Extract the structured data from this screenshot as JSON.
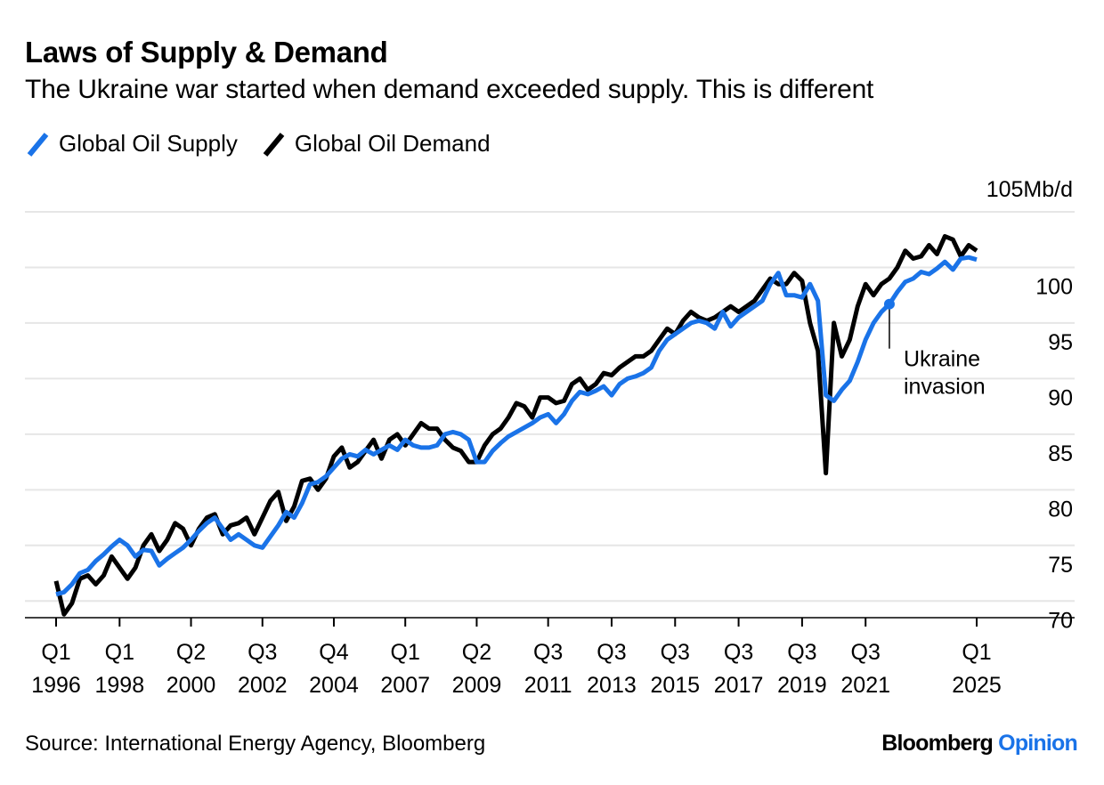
{
  "title": "Laws of Supply & Demand",
  "subtitle": "The Ukraine war started when demand exceeded supply. This is different",
  "source": "Source: International Energy Agency, Bloomberg",
  "brand": {
    "name": "Bloomberg",
    "suffix": "Opinion"
  },
  "colors": {
    "supply": "#1a73e8",
    "demand": "#000000",
    "grid": "#e6e6e6"
  },
  "chart_data": {
    "type": "line",
    "unit_label": "105Mb/d",
    "ylim": [
      68.5,
      105
    ],
    "y_ticks": [
      70,
      75,
      80,
      85,
      90,
      95,
      100
    ],
    "x_range": [
      1996.0,
      2025.5
    ],
    "grid": true,
    "legend_position": "top-left",
    "x_ticks": [
      {
        "x": 1996.0,
        "q": "Q1",
        "year": "1996"
      },
      {
        "x": 1998.0,
        "q": "Q1",
        "year": "1998"
      },
      {
        "x": 2000.25,
        "q": "Q2",
        "year": "2000"
      },
      {
        "x": 2002.5,
        "q": "Q3",
        "year": "2002"
      },
      {
        "x": 2004.75,
        "q": "Q4",
        "year": "2004"
      },
      {
        "x": 2007.0,
        "q": "Q1",
        "year": "2007"
      },
      {
        "x": 2009.25,
        "q": "Q2",
        "year": "2009"
      },
      {
        "x": 2011.5,
        "q": "Q3",
        "year": "2011"
      },
      {
        "x": 2013.5,
        "q": "Q3",
        "year": "2013"
      },
      {
        "x": 2015.5,
        "q": "Q3",
        "year": "2015"
      },
      {
        "x": 2017.5,
        "q": "Q3",
        "year": "2017"
      },
      {
        "x": 2019.5,
        "q": "Q3",
        "year": "2019"
      },
      {
        "x": 2021.5,
        "q": "Q3",
        "year": "2021"
      },
      {
        "x": 2025.0,
        "q": "Q1",
        "year": "2025"
      }
    ],
    "series": [
      {
        "name": "Global Oil Supply",
        "color": "#1a73e8",
        "points": [
          [
            1996.0,
            70.6
          ],
          [
            1996.25,
            70.8
          ],
          [
            1996.5,
            71.5
          ],
          [
            1996.75,
            72.5
          ],
          [
            1997.0,
            72.8
          ],
          [
            1997.25,
            73.6
          ],
          [
            1997.5,
            74.2
          ],
          [
            1997.75,
            74.9
          ],
          [
            1998.0,
            75.5
          ],
          [
            1998.25,
            75.0
          ],
          [
            1998.5,
            74.0
          ],
          [
            1998.75,
            74.6
          ],
          [
            1999.0,
            74.5
          ],
          [
            1999.25,
            73.2
          ],
          [
            1999.5,
            73.8
          ],
          [
            1999.75,
            74.3
          ],
          [
            2000.0,
            74.8
          ],
          [
            2000.25,
            75.5
          ],
          [
            2000.5,
            76.3
          ],
          [
            2000.75,
            77.0
          ],
          [
            2001.0,
            77.5
          ],
          [
            2001.25,
            76.5
          ],
          [
            2001.5,
            75.5
          ],
          [
            2001.75,
            76.0
          ],
          [
            2002.0,
            75.5
          ],
          [
            2002.25,
            75.0
          ],
          [
            2002.5,
            74.8
          ],
          [
            2002.75,
            75.8
          ],
          [
            2003.0,
            76.8
          ],
          [
            2003.25,
            78.0
          ],
          [
            2003.5,
            77.5
          ],
          [
            2003.75,
            78.8
          ],
          [
            2004.0,
            80.5
          ],
          [
            2004.25,
            80.7
          ],
          [
            2004.5,
            81.2
          ],
          [
            2004.75,
            82.0
          ],
          [
            2005.0,
            82.8
          ],
          [
            2005.25,
            83.2
          ],
          [
            2005.5,
            83.0
          ],
          [
            2005.75,
            83.6
          ],
          [
            2006.0,
            83.2
          ],
          [
            2006.25,
            83.6
          ],
          [
            2006.5,
            84.0
          ],
          [
            2006.75,
            83.6
          ],
          [
            2007.0,
            84.5
          ],
          [
            2007.25,
            84.0
          ],
          [
            2007.5,
            83.8
          ],
          [
            2007.75,
            83.8
          ],
          [
            2008.0,
            84.0
          ],
          [
            2008.25,
            85.0
          ],
          [
            2008.5,
            85.2
          ],
          [
            2008.75,
            85.0
          ],
          [
            2009.0,
            84.5
          ],
          [
            2009.25,
            82.5
          ],
          [
            2009.5,
            82.5
          ],
          [
            2009.75,
            83.5
          ],
          [
            2010.0,
            84.2
          ],
          [
            2010.25,
            84.8
          ],
          [
            2010.5,
            85.2
          ],
          [
            2010.75,
            85.6
          ],
          [
            2011.0,
            86.0
          ],
          [
            2011.25,
            86.5
          ],
          [
            2011.5,
            86.8
          ],
          [
            2011.75,
            86.0
          ],
          [
            2012.0,
            86.8
          ],
          [
            2012.25,
            88.0
          ],
          [
            2012.5,
            88.8
          ],
          [
            2012.75,
            88.6
          ],
          [
            2013.0,
            88.9
          ],
          [
            2013.25,
            89.3
          ],
          [
            2013.5,
            88.5
          ],
          [
            2013.75,
            89.5
          ],
          [
            2014.0,
            90.0
          ],
          [
            2014.25,
            90.2
          ],
          [
            2014.5,
            90.5
          ],
          [
            2014.75,
            91.0
          ],
          [
            2015.0,
            92.5
          ],
          [
            2015.25,
            93.5
          ],
          [
            2015.5,
            94.0
          ],
          [
            2015.75,
            94.5
          ],
          [
            2016.0,
            95.0
          ],
          [
            2016.25,
            95.2
          ],
          [
            2016.5,
            95.0
          ],
          [
            2016.75,
            94.5
          ],
          [
            2017.0,
            96.0
          ],
          [
            2017.25,
            94.7
          ],
          [
            2017.5,
            95.5
          ],
          [
            2017.75,
            96.0
          ],
          [
            2018.0,
            96.5
          ],
          [
            2018.25,
            97.0
          ],
          [
            2018.5,
            98.5
          ],
          [
            2018.75,
            99.5
          ],
          [
            2019.0,
            97.5
          ],
          [
            2019.25,
            97.5
          ],
          [
            2019.5,
            97.3
          ],
          [
            2019.75,
            98.5
          ],
          [
            2020.0,
            97.0
          ],
          [
            2020.25,
            88.5
          ],
          [
            2020.5,
            88.0
          ],
          [
            2020.75,
            89.0
          ],
          [
            2021.0,
            89.8
          ],
          [
            2021.25,
            91.5
          ],
          [
            2021.5,
            93.5
          ],
          [
            2021.75,
            95.0
          ],
          [
            2022.0,
            96.0
          ],
          [
            2022.25,
            96.7
          ],
          [
            2022.5,
            97.8
          ],
          [
            2022.75,
            98.7
          ],
          [
            2023.0,
            99.0
          ],
          [
            2023.25,
            99.6
          ],
          [
            2023.5,
            99.4
          ],
          [
            2023.75,
            99.9
          ],
          [
            2024.0,
            100.5
          ],
          [
            2024.25,
            99.8
          ],
          [
            2024.5,
            100.8
          ],
          [
            2024.75,
            100.9
          ],
          [
            2025.0,
            100.7
          ]
        ]
      },
      {
        "name": "Global Oil Demand",
        "color": "#000000",
        "points": [
          [
            1996.0,
            71.8
          ],
          [
            1996.25,
            68.8
          ],
          [
            1996.5,
            69.8
          ],
          [
            1996.75,
            72.0
          ],
          [
            1997.0,
            72.3
          ],
          [
            1997.25,
            71.5
          ],
          [
            1997.5,
            72.3
          ],
          [
            1997.75,
            74.0
          ],
          [
            1998.0,
            73.0
          ],
          [
            1998.25,
            72.0
          ],
          [
            1998.5,
            73.0
          ],
          [
            1998.75,
            75.0
          ],
          [
            1999.0,
            76.0
          ],
          [
            1999.25,
            74.5
          ],
          [
            1999.5,
            75.5
          ],
          [
            1999.75,
            77.0
          ],
          [
            2000.0,
            76.5
          ],
          [
            2000.25,
            75.0
          ],
          [
            2000.5,
            76.5
          ],
          [
            2000.75,
            77.5
          ],
          [
            2001.0,
            77.8
          ],
          [
            2001.25,
            76.0
          ],
          [
            2001.5,
            76.8
          ],
          [
            2001.75,
            77.0
          ],
          [
            2002.0,
            77.5
          ],
          [
            2002.25,
            76.0
          ],
          [
            2002.5,
            77.5
          ],
          [
            2002.75,
            79.0
          ],
          [
            2003.0,
            79.8
          ],
          [
            2003.25,
            77.2
          ],
          [
            2003.5,
            78.5
          ],
          [
            2003.75,
            80.8
          ],
          [
            2004.0,
            81.0
          ],
          [
            2004.25,
            80.0
          ],
          [
            2004.5,
            81.0
          ],
          [
            2004.75,
            83.0
          ],
          [
            2005.0,
            83.8
          ],
          [
            2005.25,
            82.0
          ],
          [
            2005.5,
            82.5
          ],
          [
            2005.75,
            83.5
          ],
          [
            2006.0,
            84.5
          ],
          [
            2006.25,
            82.8
          ],
          [
            2006.5,
            84.5
          ],
          [
            2006.75,
            85.0
          ],
          [
            2007.0,
            84.0
          ],
          [
            2007.25,
            85.0
          ],
          [
            2007.5,
            86.0
          ],
          [
            2007.75,
            85.5
          ],
          [
            2008.0,
            85.5
          ],
          [
            2008.25,
            84.5
          ],
          [
            2008.5,
            83.8
          ],
          [
            2008.75,
            83.5
          ],
          [
            2009.0,
            82.5
          ],
          [
            2009.25,
            82.5
          ],
          [
            2009.5,
            84.0
          ],
          [
            2009.75,
            85.0
          ],
          [
            2010.0,
            85.5
          ],
          [
            2010.25,
            86.5
          ],
          [
            2010.5,
            87.8
          ],
          [
            2010.75,
            87.5
          ],
          [
            2011.0,
            86.5
          ],
          [
            2011.25,
            88.3
          ],
          [
            2011.5,
            88.3
          ],
          [
            2011.75,
            87.8
          ],
          [
            2012.0,
            88.0
          ],
          [
            2012.25,
            89.5
          ],
          [
            2012.5,
            90.0
          ],
          [
            2012.75,
            89.0
          ],
          [
            2013.0,
            89.5
          ],
          [
            2013.25,
            90.5
          ],
          [
            2013.5,
            90.3
          ],
          [
            2013.75,
            91.0
          ],
          [
            2014.0,
            91.5
          ],
          [
            2014.25,
            92.0
          ],
          [
            2014.5,
            92.0
          ],
          [
            2014.75,
            92.5
          ],
          [
            2015.0,
            93.5
          ],
          [
            2015.25,
            94.5
          ],
          [
            2015.5,
            94.0
          ],
          [
            2015.75,
            95.2
          ],
          [
            2016.0,
            96.0
          ],
          [
            2016.25,
            95.5
          ],
          [
            2016.5,
            95.2
          ],
          [
            2016.75,
            95.5
          ],
          [
            2017.0,
            96.0
          ],
          [
            2017.25,
            96.5
          ],
          [
            2017.5,
            96.0
          ],
          [
            2017.75,
            96.5
          ],
          [
            2018.0,
            97.0
          ],
          [
            2018.25,
            98.0
          ],
          [
            2018.5,
            99.0
          ],
          [
            2018.75,
            98.5
          ],
          [
            2019.0,
            98.5
          ],
          [
            2019.25,
            99.5
          ],
          [
            2019.5,
            98.8
          ],
          [
            2019.75,
            95.0
          ],
          [
            2020.0,
            92.5
          ],
          [
            2020.25,
            81.5
          ],
          [
            2020.5,
            95.0
          ],
          [
            2020.75,
            92.0
          ],
          [
            2021.0,
            93.5
          ],
          [
            2021.25,
            96.5
          ],
          [
            2021.5,
            98.5
          ],
          [
            2021.75,
            97.5
          ],
          [
            2022.0,
            98.5
          ],
          [
            2022.25,
            99.0
          ],
          [
            2022.5,
            100.0
          ],
          [
            2022.75,
            101.5
          ],
          [
            2023.0,
            100.8
          ],
          [
            2023.25,
            101.0
          ],
          [
            2023.5,
            102.0
          ],
          [
            2023.75,
            101.2
          ],
          [
            2024.0,
            102.8
          ],
          [
            2024.25,
            102.5
          ],
          [
            2024.5,
            101.0
          ],
          [
            2024.75,
            102.0
          ],
          [
            2025.0,
            101.5
          ]
        ]
      }
    ],
    "annotations": [
      {
        "text_lines": [
          "Ukraine",
          "invasion"
        ],
        "x": 2022.25,
        "y": 96.7,
        "series": "Global Oil Supply"
      }
    ]
  }
}
